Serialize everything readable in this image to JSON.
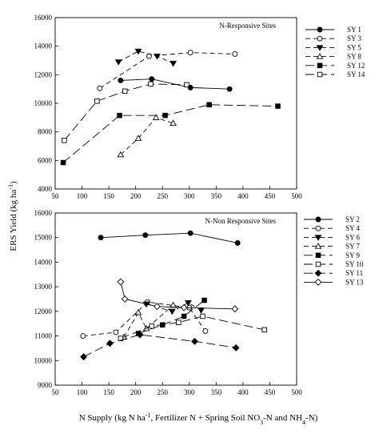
{
  "figure": {
    "ylabel_main": "ERS Yield",
    "ylabel_unit": "(kg ha",
    "ylabel_sup": "-1",
    "ylabel_close": ")",
    "xlabel_prefix": "N Supply (kg N ha",
    "xlabel_sup": "-1",
    "xlabel_mid": ", Fertilizer N + Spring Soil NO",
    "xlabel_sub": "3",
    "xlabel_suffix": "-N and NH",
    "xlabel_sub2": "4",
    "xlabel_end": "-N)"
  },
  "chart_data": [
    {
      "type": "line",
      "title": "N-Responsive Sites",
      "xlim": [
        50,
        500
      ],
      "ylim": [
        4000,
        16000
      ],
      "xticks": [
        50,
        100,
        150,
        200,
        250,
        300,
        350,
        400,
        450,
        500
      ],
      "yticks": [
        4000,
        6000,
        8000,
        10000,
        12000,
        14000,
        16000
      ],
      "grid": false,
      "legend_position": "right",
      "series": [
        {
          "name": "SY 1",
          "marker": "circle-filled",
          "dash": "solid",
          "x": [
            172,
            230,
            302,
            375
          ],
          "y": [
            11600,
            11700,
            11100,
            11000
          ]
        },
        {
          "name": "SY 3",
          "marker": "circle-open",
          "dash": "dash",
          "x": [
            133,
            225,
            302,
            385
          ],
          "y": [
            11050,
            13300,
            13550,
            13450
          ]
        },
        {
          "name": "SY 5",
          "marker": "tri-down-filled",
          "dash": "dash",
          "x": [
            168,
            205,
            240,
            270
          ],
          "y": [
            12900,
            13650,
            13300,
            12800
          ]
        },
        {
          "name": "SY 8",
          "marker": "tri-up-open",
          "dash": "dash",
          "x": [
            172,
            205,
            238,
            270
          ],
          "y": [
            6400,
            7550,
            9000,
            8600
          ]
        },
        {
          "name": "SY 12",
          "marker": "square-filled",
          "dash": "longdash",
          "x": [
            65,
            170,
            255,
            337,
            465
          ],
          "y": [
            5850,
            9150,
            9150,
            9900,
            9800
          ]
        },
        {
          "name": "SY 14",
          "marker": "square-open",
          "dash": "longdash",
          "x": [
            67,
            128,
            180,
            228,
            295
          ],
          "y": [
            7400,
            10150,
            10850,
            11350,
            11300
          ]
        }
      ]
    },
    {
      "type": "line",
      "title": "N-Non Responsive Sites",
      "xlim": [
        50,
        500
      ],
      "ylim": [
        9000,
        16000
      ],
      "xticks": [
        50,
        100,
        150,
        200,
        250,
        300,
        350,
        400,
        450,
        500
      ],
      "yticks": [
        9000,
        10000,
        11000,
        12000,
        13000,
        14000,
        15000,
        16000
      ],
      "grid": false,
      "legend_position": "right",
      "series": [
        {
          "name": "SY 2",
          "marker": "circle-filled",
          "dash": "solid",
          "x": [
            135,
            218,
            302,
            390
          ],
          "y": [
            15000,
            15100,
            15180,
            14780
          ]
        },
        {
          "name": "SY 4",
          "marker": "circle-open",
          "dash": "dash",
          "x": [
            102,
            163,
            222,
            300,
            330
          ],
          "y": [
            11000,
            11150,
            12380,
            12150,
            11200
          ]
        },
        {
          "name": "SY 6",
          "marker": "tri-down-filled",
          "dash": "dash",
          "x": [
            220,
            268,
            298,
            322
          ],
          "y": [
            12300,
            12000,
            12350,
            12050
          ]
        },
        {
          "name": "SY 7",
          "marker": "tri-up-open",
          "dash": "dash",
          "x": [
            178,
            205,
            220,
            270
          ],
          "y": [
            10950,
            11950,
            11300,
            12250
          ]
        },
        {
          "name": "SY 9",
          "marker": "square-filled",
          "dash": "longdash",
          "x": [
            205,
            250,
            290,
            328
          ],
          "y": [
            11100,
            11450,
            11800,
            12450
          ]
        },
        {
          "name": "SY 10",
          "marker": "square-open",
          "dash": "longdash",
          "x": [
            172,
            230,
            280,
            325,
            440
          ],
          "y": [
            10900,
            11400,
            11550,
            11800,
            11250
          ]
        },
        {
          "name": "SY 11",
          "marker": "diamond-filled",
          "dash": "longdash",
          "x": [
            103,
            152,
            208,
            310,
            387
          ],
          "y": [
            10150,
            10700,
            11050,
            10780,
            10520
          ]
        },
        {
          "name": "SY 13",
          "marker": "diamond-open",
          "dash": "solid",
          "x": [
            172,
            180,
            240,
            290,
            385
          ],
          "y": [
            13200,
            12500,
            12200,
            12150,
            12100
          ]
        }
      ]
    }
  ]
}
